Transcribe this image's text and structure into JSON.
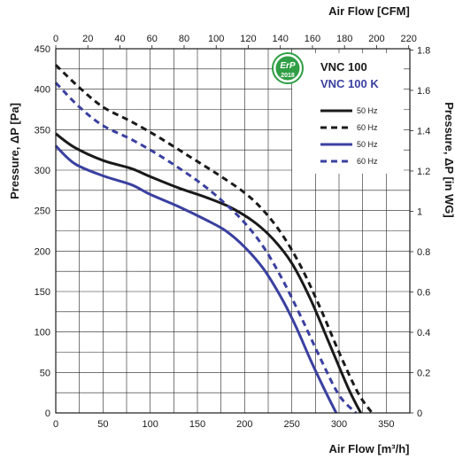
{
  "chart_data": {
    "type": "line",
    "xlabel_bottom": "Air Flow [m³/h]",
    "xlabel_top": "Air Flow [CFM]",
    "ylabel_left": "Pressure, ΔP [Pa]",
    "ylabel_right": "Pressure, ΔP [in WG]",
    "xlim": [
      0,
      375
    ],
    "ylim": [
      0,
      450
    ],
    "x_ticks": [
      0,
      50,
      100,
      150,
      200,
      250,
      300,
      350
    ],
    "y_ticks": [
      0,
      50,
      100,
      150,
      200,
      250,
      300,
      350,
      400,
      450
    ],
    "top_ticks_cfm": [
      0,
      20,
      40,
      60,
      80,
      100,
      120,
      140,
      160,
      180,
      200,
      220
    ],
    "right_ticks_inwg": [
      "0",
      "0.2",
      "0.4",
      "0.6",
      "0.8",
      "1",
      "1.2",
      "1.4",
      "1.6",
      "1.8"
    ],
    "grid": true,
    "badge": {
      "line1": "ErP",
      "line2": "2018"
    },
    "models": [
      {
        "label": "VNC 100",
        "color": "#1a1a1a"
      },
      {
        "label": "VNC 100 K",
        "color": "#3a40a0"
      }
    ],
    "series": [
      {
        "name": "50 Hz",
        "model": "VNC 100",
        "color": "#1a1a1a",
        "dash": false,
        "points": [
          [
            0,
            345
          ],
          [
            20,
            328
          ],
          [
            50,
            312
          ],
          [
            80,
            302
          ],
          [
            100,
            292
          ],
          [
            130,
            278
          ],
          [
            160,
            266
          ],
          [
            185,
            254
          ],
          [
            210,
            236
          ],
          [
            230,
            215
          ],
          [
            250,
            185
          ],
          [
            270,
            140
          ],
          [
            290,
            85
          ],
          [
            310,
            30
          ],
          [
            323,
            0
          ]
        ]
      },
      {
        "name": "60 Hz",
        "model": "VNC 100",
        "color": "#1a1a1a",
        "dash": true,
        "points": [
          [
            0,
            430
          ],
          [
            25,
            402
          ],
          [
            50,
            378
          ],
          [
            80,
            360
          ],
          [
            110,
            340
          ],
          [
            140,
            318
          ],
          [
            170,
            296
          ],
          [
            200,
            272
          ],
          [
            220,
            250
          ],
          [
            240,
            220
          ],
          [
            260,
            180
          ],
          [
            280,
            130
          ],
          [
            300,
            75
          ],
          [
            320,
            25
          ],
          [
            335,
            0
          ]
        ]
      },
      {
        "name": "50 Hz",
        "model": "VNC 100 K",
        "color": "#3a40a0",
        "dash": false,
        "points": [
          [
            0,
            330
          ],
          [
            20,
            308
          ],
          [
            50,
            293
          ],
          [
            80,
            282
          ],
          [
            100,
            270
          ],
          [
            130,
            255
          ],
          [
            160,
            238
          ],
          [
            180,
            225
          ],
          [
            200,
            205
          ],
          [
            220,
            178
          ],
          [
            240,
            140
          ],
          [
            255,
            105
          ],
          [
            270,
            65
          ],
          [
            285,
            28
          ],
          [
            297,
            0
          ]
        ]
      },
      {
        "name": "60 Hz",
        "model": "VNC 100 K",
        "color": "#3a40a0",
        "dash": true,
        "points": [
          [
            0,
            408
          ],
          [
            25,
            378
          ],
          [
            50,
            355
          ],
          [
            80,
            338
          ],
          [
            110,
            318
          ],
          [
            140,
            295
          ],
          [
            160,
            278
          ],
          [
            180,
            258
          ],
          [
            200,
            235
          ],
          [
            220,
            205
          ],
          [
            240,
            165
          ],
          [
            260,
            118
          ],
          [
            280,
            68
          ],
          [
            300,
            22
          ],
          [
            318,
            0
          ]
        ]
      }
    ]
  }
}
